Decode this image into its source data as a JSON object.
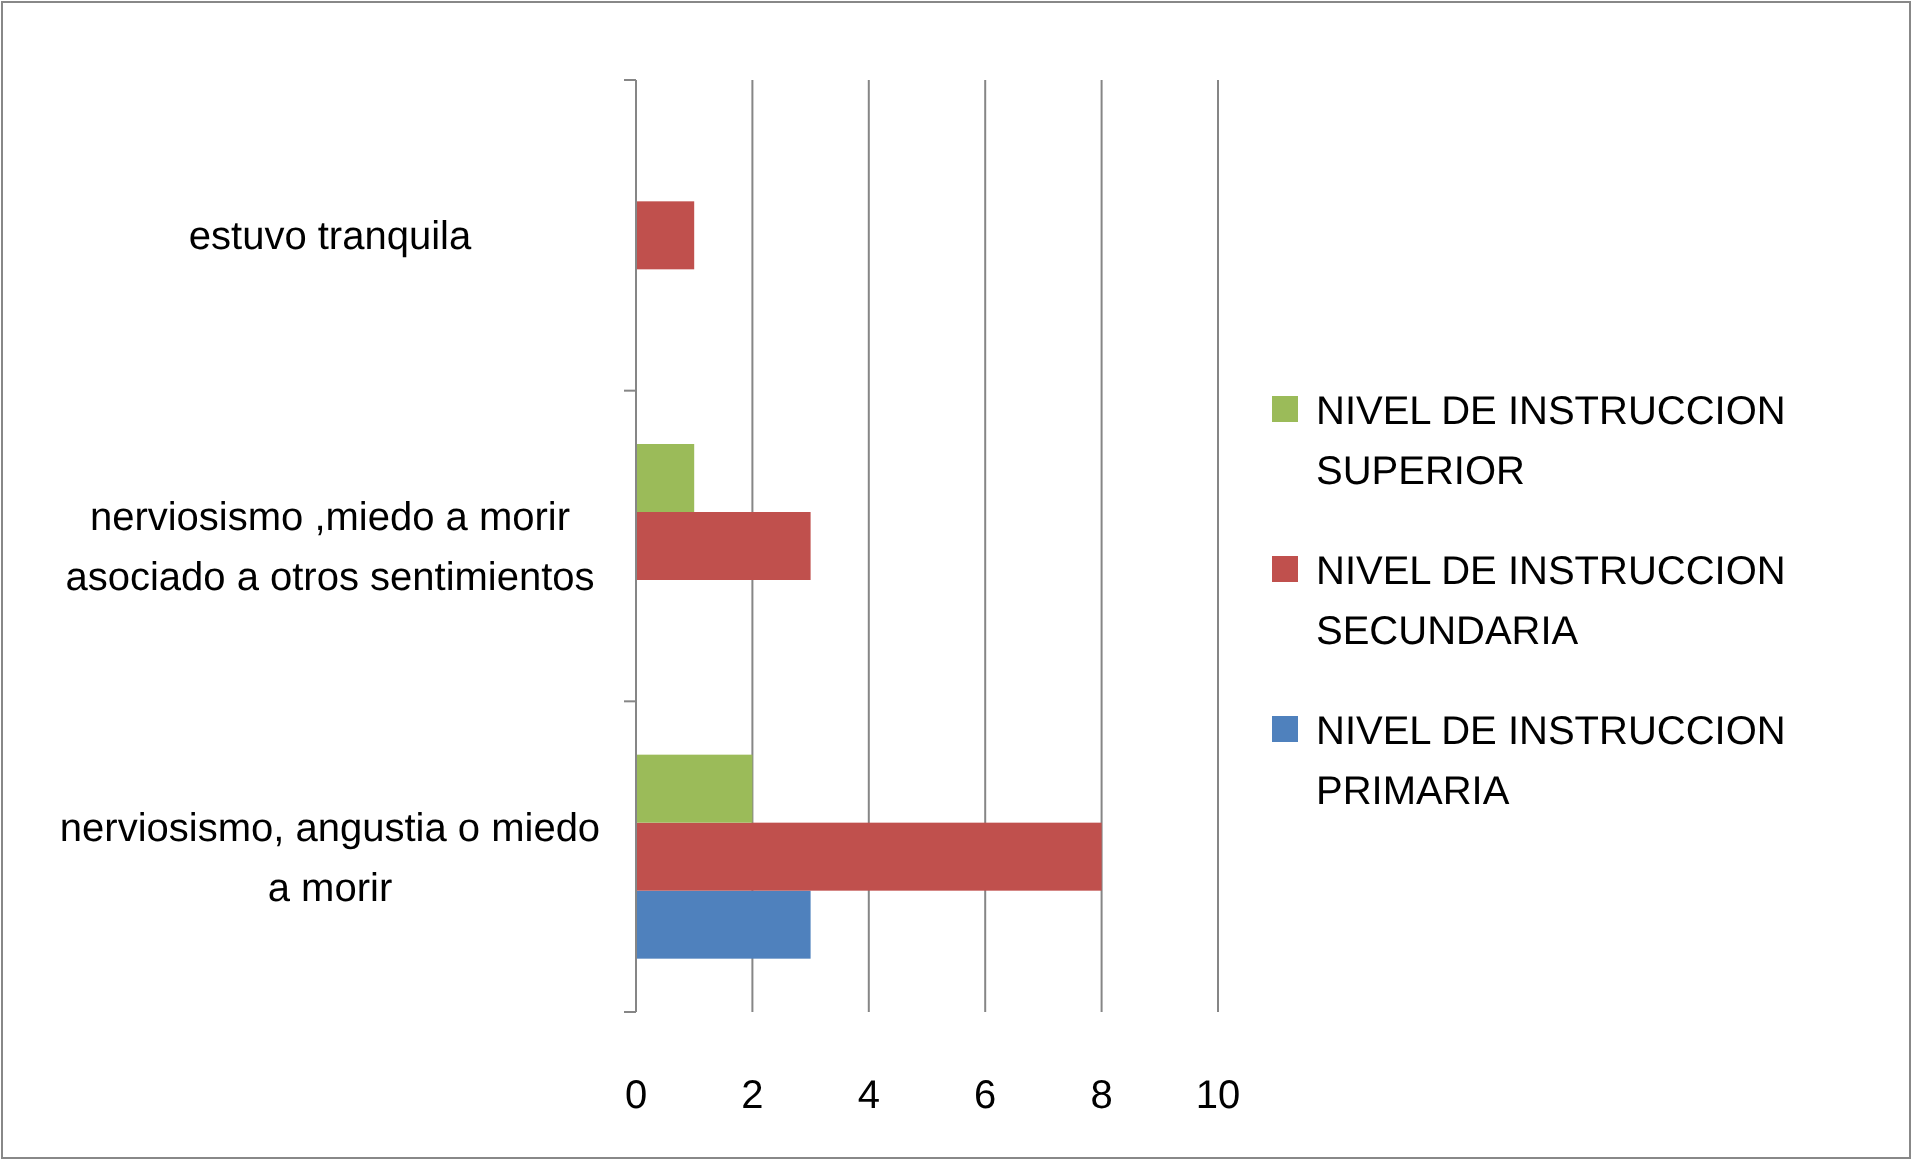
{
  "chart_data": {
    "type": "bar",
    "orientation": "horizontal",
    "categories": [
      "estuvo tranquila",
      "nerviosismo ,miedo a morir asociado a otros sentimientos",
      "nerviosismo, angustia o miedo a morir"
    ],
    "series": [
      {
        "name": "NIVEL DE INSTRUCCION PRIMARIA",
        "color": "#4f81bd",
        "values": [
          0,
          0,
          3
        ]
      },
      {
        "name": "NIVEL DE INSTRUCCION SECUNDARIA",
        "color": "#c0504d",
        "values": [
          1,
          3,
          8
        ]
      },
      {
        "name": "NIVEL DE INSTRUCCION SUPERIOR",
        "color": "#9bbb59",
        "values": [
          0,
          1,
          2
        ]
      }
    ],
    "xlim": [
      0,
      10
    ],
    "xticks": [
      0,
      2,
      4,
      6,
      8,
      10
    ],
    "grid": "x",
    "legend": "right"
  }
}
